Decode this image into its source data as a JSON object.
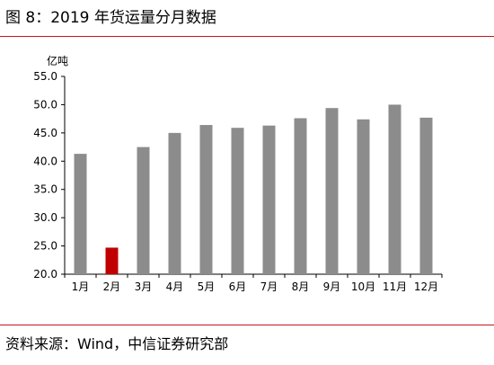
{
  "figure_title": "图 8：2019 年货运量分月数据",
  "source": "资料来源：Wind，中信证券研究部",
  "chart_data": {
    "type": "bar",
    "title": "",
    "xlabel": "",
    "ylabel": "",
    "unit_label": "亿吨",
    "categories": [
      "1月",
      "2月",
      "3月",
      "4月",
      "5月",
      "6月",
      "7月",
      "8月",
      "9月",
      "10月",
      "11月",
      "12月"
    ],
    "values": [
      41.3,
      24.7,
      42.5,
      45.0,
      46.4,
      45.9,
      46.3,
      47.6,
      49.4,
      47.4,
      50.0,
      47.7
    ],
    "ylim": [
      20.0,
      55.0
    ],
    "yticks": [
      "20.0",
      "25.0",
      "30.0",
      "35.0",
      "40.0",
      "45.0",
      "50.0",
      "55.0"
    ],
    "grid": false,
    "legend": "none",
    "colors": {
      "bar": "#8c8c8c",
      "highlight": "#c00000",
      "highlight_index": 1,
      "rule": "#c8151d"
    }
  }
}
